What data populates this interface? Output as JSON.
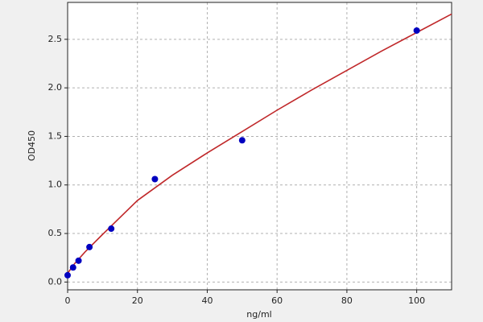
{
  "chart_data": {
    "type": "scatter",
    "x_label": "ng/ml",
    "y_label": "OD450",
    "xlim": [
      0,
      110
    ],
    "ylim": [
      -0.08,
      2.88
    ],
    "xticks": [
      0,
      20,
      40,
      60,
      80,
      100
    ],
    "yticks": [
      {
        "value": 0,
        "label": "0.0"
      },
      {
        "value": 0.5,
        "label": "0.5"
      },
      {
        "value": 1,
        "label": "1.0"
      },
      {
        "value": 1.5,
        "label": "1.5"
      },
      {
        "value": 2,
        "label": "2.0"
      },
      {
        "value": 2.5,
        "label": "2.5"
      }
    ],
    "grid": true,
    "points": {
      "color": "#0000c0",
      "x": [
        0,
        1.56,
        3.13,
        6.25,
        12.5,
        25,
        50,
        100
      ],
      "values": [
        0.07,
        0.15,
        0.22,
        0.36,
        0.55,
        1.06,
        1.46,
        2.59
      ]
    },
    "curve": {
      "color": "#c0282a",
      "x": [
        0,
        2,
        5,
        10,
        20,
        30,
        40,
        50,
        60,
        70,
        80,
        90,
        100,
        110
      ],
      "values": [
        0.09,
        0.19,
        0.31,
        0.49,
        0.84,
        1.1,
        1.33,
        1.55,
        1.77,
        1.98,
        2.18,
        2.38,
        2.57,
        2.76
      ]
    }
  }
}
